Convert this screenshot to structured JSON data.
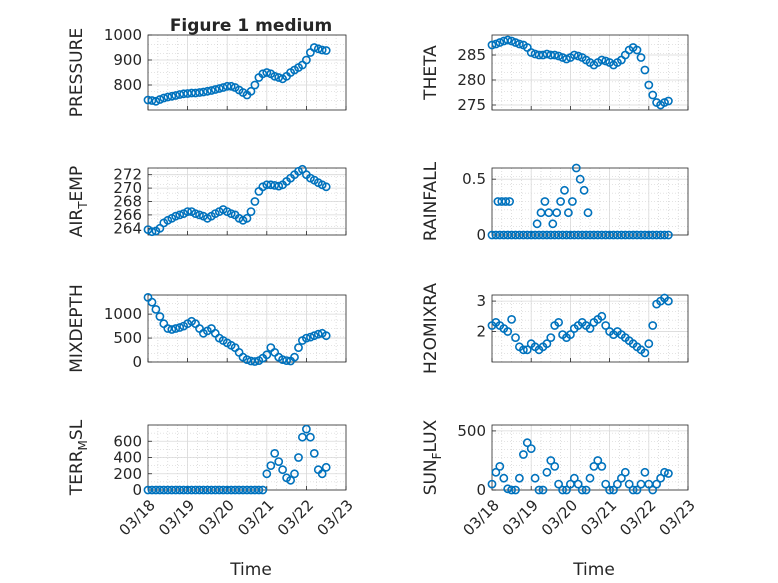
{
  "figure": {
    "title": "Figure 1 medium",
    "xlabel": "Time"
  },
  "xticks": [
    "03/18",
    "03/19",
    "03/20",
    "03/21",
    "03/22",
    "03/23"
  ],
  "marker_color": "#0072BD",
  "chart_data": [
    {
      "id": "pressure",
      "type": "scatter",
      "ylabel": "PRESSURE",
      "ylim": [
        700,
        1000
      ],
      "yticks": [
        800,
        900,
        1000
      ],
      "grid": true,
      "x": [
        0.0,
        0.1,
        0.2,
        0.3,
        0.4,
        0.5,
        0.6,
        0.7,
        0.8,
        0.9,
        1.0,
        1.1,
        1.2,
        1.3,
        1.4,
        1.5,
        1.6,
        1.7,
        1.8,
        1.9,
        2.0,
        2.1,
        2.2,
        2.3,
        2.4,
        2.5,
        2.6,
        2.7,
        2.8,
        2.9,
        3.0,
        3.1,
        3.2,
        3.3,
        3.4,
        3.5,
        3.6,
        3.7,
        3.8,
        3.9,
        4.0,
        4.1,
        4.2,
        4.3,
        4.4,
        4.5
      ],
      "y": [
        740,
        738,
        735,
        742,
        748,
        752,
        755,
        758,
        762,
        765,
        766,
        768,
        768,
        770,
        772,
        775,
        778,
        782,
        786,
        790,
        795,
        795,
        790,
        780,
        770,
        760,
        775,
        800,
        830,
        845,
        850,
        845,
        835,
        830,
        825,
        835,
        850,
        860,
        870,
        880,
        900,
        930,
        950,
        945,
        940,
        938
      ]
    },
    {
      "id": "theta",
      "type": "scatter",
      "ylabel": "THETA",
      "ylim": [
        274,
        289
      ],
      "yticks": [
        275,
        280,
        285
      ],
      "grid": true,
      "x": [
        0.0,
        0.1,
        0.2,
        0.3,
        0.4,
        0.5,
        0.6,
        0.7,
        0.8,
        0.9,
        1.0,
        1.1,
        1.2,
        1.3,
        1.4,
        1.5,
        1.6,
        1.7,
        1.8,
        1.9,
        2.0,
        2.1,
        2.2,
        2.3,
        2.4,
        2.5,
        2.6,
        2.7,
        2.8,
        2.9,
        3.0,
        3.1,
        3.2,
        3.3,
        3.4,
        3.5,
        3.6,
        3.7,
        3.8,
        3.9,
        4.0,
        4.1,
        4.2,
        4.3,
        4.4,
        4.5
      ],
      "y": [
        287.0,
        287.2,
        287.5,
        287.8,
        288.0,
        287.8,
        287.5,
        287.2,
        287.0,
        286.5,
        285.5,
        285.2,
        285.0,
        285.0,
        285.2,
        285.0,
        285.0,
        284.8,
        284.5,
        284.2,
        284.5,
        285.0,
        284.8,
        284.5,
        284.0,
        283.5,
        283.0,
        283.5,
        284.0,
        283.8,
        283.5,
        283.0,
        283.5,
        284.0,
        285.0,
        286.0,
        286.5,
        286.0,
        284.5,
        282.0,
        279.0,
        277.0,
        275.5,
        275.0,
        275.5,
        275.8
      ]
    },
    {
      "id": "air_temp",
      "type": "scatter",
      "ylabel": "AIR_TEMP",
      "ylim": [
        263,
        273
      ],
      "yticks": [
        264,
        266,
        268,
        270,
        272
      ],
      "grid": true,
      "x": [
        0.0,
        0.1,
        0.2,
        0.3,
        0.4,
        0.5,
        0.6,
        0.7,
        0.8,
        0.9,
        1.0,
        1.1,
        1.2,
        1.3,
        1.4,
        1.5,
        1.6,
        1.7,
        1.8,
        1.9,
        2.0,
        2.1,
        2.2,
        2.3,
        2.4,
        2.5,
        2.6,
        2.7,
        2.8,
        2.9,
        3.0,
        3.1,
        3.2,
        3.3,
        3.4,
        3.5,
        3.6,
        3.7,
        3.8,
        3.9,
        4.0,
        4.1,
        4.2,
        4.3,
        4.4,
        4.5
      ],
      "y": [
        263.8,
        263.5,
        263.6,
        264.0,
        264.8,
        265.2,
        265.5,
        265.8,
        266.0,
        266.2,
        266.5,
        266.5,
        266.2,
        266.0,
        265.8,
        265.5,
        265.8,
        266.2,
        266.5,
        266.8,
        266.5,
        266.2,
        266.0,
        265.5,
        265.2,
        265.5,
        266.5,
        268.0,
        269.5,
        270.2,
        270.5,
        270.5,
        270.4,
        270.3,
        270.5,
        271.0,
        271.5,
        272.0,
        272.5,
        272.8,
        272.0,
        271.5,
        271.2,
        270.8,
        270.5,
        270.2
      ]
    },
    {
      "id": "rainfall",
      "type": "scatter",
      "ylabel": "RAINFALL",
      "ylim": [
        0,
        0.6
      ],
      "yticks": [
        0,
        0.5
      ],
      "grid": true,
      "x": [
        0.0,
        0.1,
        0.2,
        0.3,
        0.4,
        0.5,
        0.6,
        0.7,
        0.8,
        0.9,
        1.0,
        1.1,
        1.2,
        1.3,
        1.4,
        1.5,
        1.6,
        1.7,
        1.8,
        1.9,
        2.0,
        2.1,
        2.2,
        2.3,
        2.4,
        2.5,
        2.6,
        2.7,
        2.8,
        2.9,
        3.0,
        3.1,
        3.2,
        3.3,
        3.4,
        3.5,
        3.6,
        3.7,
        3.8,
        3.9,
        4.0,
        4.1,
        4.2,
        4.3,
        4.4,
        4.5,
        0.15,
        0.25,
        0.35,
        0.45,
        1.15,
        1.25,
        1.35,
        1.45,
        1.55,
        1.65,
        1.75,
        1.85,
        1.95,
        2.05,
        2.15,
        2.25,
        2.35,
        2.45
      ],
      "y": [
        0,
        0,
        0,
        0,
        0,
        0,
        0,
        0,
        0,
        0,
        0,
        0,
        0,
        0,
        0,
        0,
        0,
        0,
        0,
        0,
        0,
        0,
        0,
        0,
        0,
        0,
        0,
        0,
        0,
        0,
        0,
        0,
        0,
        0,
        0,
        0,
        0,
        0,
        0,
        0,
        0,
        0,
        0,
        0,
        0,
        0,
        0.3,
        0.3,
        0.3,
        0.3,
        0.1,
        0.2,
        0.3,
        0.2,
        0.1,
        0.2,
        0.3,
        0.4,
        0.2,
        0.3,
        0.6,
        0.5,
        0.4,
        0.2
      ]
    },
    {
      "id": "mixdepth",
      "type": "scatter",
      "ylabel": "MIXDEPTH",
      "ylim": [
        0,
        1400
      ],
      "yticks": [
        0,
        500,
        1000
      ],
      "grid": true,
      "x": [
        0.0,
        0.1,
        0.2,
        0.3,
        0.4,
        0.5,
        0.6,
        0.7,
        0.8,
        0.9,
        1.0,
        1.1,
        1.2,
        1.3,
        1.4,
        1.5,
        1.6,
        1.7,
        1.8,
        1.9,
        2.0,
        2.1,
        2.2,
        2.3,
        2.4,
        2.5,
        2.6,
        2.7,
        2.8,
        2.9,
        3.0,
        3.1,
        3.2,
        3.3,
        3.4,
        3.5,
        3.6,
        3.7,
        3.8,
        3.9,
        4.0,
        4.1,
        4.2,
        4.3,
        4.4,
        4.5
      ],
      "y": [
        1350,
        1250,
        1100,
        950,
        800,
        700,
        680,
        700,
        720,
        750,
        800,
        850,
        800,
        700,
        600,
        650,
        700,
        600,
        500,
        450,
        400,
        350,
        300,
        200,
        100,
        50,
        20,
        10,
        30,
        80,
        150,
        300,
        200,
        100,
        50,
        30,
        20,
        100,
        300,
        450,
        500,
        520,
        550,
        580,
        600,
        550
      ]
    },
    {
      "id": "h2omixra",
      "type": "scatter",
      "ylabel": "H2OMIXRA",
      "ylim": [
        1,
        3.2
      ],
      "yticks": [
        2,
        3
      ],
      "grid": true,
      "x": [
        0.0,
        0.1,
        0.2,
        0.3,
        0.4,
        0.5,
        0.6,
        0.7,
        0.8,
        0.9,
        1.0,
        1.1,
        1.2,
        1.3,
        1.4,
        1.5,
        1.6,
        1.7,
        1.8,
        1.9,
        2.0,
        2.1,
        2.2,
        2.3,
        2.4,
        2.5,
        2.6,
        2.7,
        2.8,
        2.9,
        3.0,
        3.1,
        3.2,
        3.3,
        3.4,
        3.5,
        3.6,
        3.7,
        3.8,
        3.9,
        4.0,
        4.1,
        4.2,
        4.3,
        4.4,
        4.5
      ],
      "y": [
        2.2,
        2.3,
        2.2,
        2.1,
        2.0,
        2.4,
        1.8,
        1.5,
        1.4,
        1.4,
        1.6,
        1.5,
        1.4,
        1.5,
        1.6,
        1.8,
        2.2,
        2.3,
        1.9,
        1.8,
        1.9,
        2.1,
        2.2,
        2.3,
        2.2,
        2.1,
        2.3,
        2.4,
        2.5,
        2.2,
        2.0,
        1.9,
        2.0,
        1.9,
        1.8,
        1.7,
        1.6,
        1.5,
        1.4,
        1.3,
        1.6,
        2.2,
        2.9,
        3.0,
        3.1,
        3.0
      ]
    },
    {
      "id": "terr_msl",
      "type": "scatter",
      "ylabel": "TERR_MSL",
      "ylim": [
        0,
        800
      ],
      "yticks": [
        0,
        200,
        400,
        600
      ],
      "grid": true,
      "x": [
        0.0,
        0.1,
        0.2,
        0.3,
        0.4,
        0.5,
        0.6,
        0.7,
        0.8,
        0.9,
        1.0,
        1.1,
        1.2,
        1.3,
        1.4,
        1.5,
        1.6,
        1.7,
        1.8,
        1.9,
        2.0,
        2.1,
        2.2,
        2.3,
        2.4,
        2.5,
        2.6,
        2.7,
        2.8,
        2.9,
        3.0,
        3.1,
        3.2,
        3.3,
        3.4,
        3.5,
        3.6,
        3.7,
        3.8,
        3.9,
        4.0,
        4.1,
        4.2,
        4.3,
        4.4,
        4.5
      ],
      "y": [
        0,
        0,
        0,
        0,
        0,
        0,
        0,
        0,
        0,
        0,
        0,
        0,
        0,
        0,
        0,
        0,
        0,
        0,
        0,
        0,
        0,
        0,
        0,
        0,
        0,
        0,
        0,
        0,
        0,
        0,
        200,
        300,
        450,
        350,
        250,
        150,
        120,
        200,
        400,
        650,
        750,
        650,
        450,
        250,
        200,
        280
      ]
    },
    {
      "id": "sun_flux",
      "type": "scatter",
      "ylabel": "SUN_FLUX",
      "ylim": [
        0,
        550
      ],
      "yticks": [
        0,
        500
      ],
      "grid": true,
      "x": [
        0.0,
        0.1,
        0.2,
        0.3,
        0.4,
        0.5,
        0.6,
        0.7,
        0.8,
        0.9,
        1.0,
        1.1,
        1.2,
        1.3,
        1.4,
        1.5,
        1.6,
        1.7,
        1.8,
        1.9,
        2.0,
        2.1,
        2.2,
        2.3,
        2.4,
        2.5,
        2.6,
        2.7,
        2.8,
        2.9,
        3.0,
        3.1,
        3.2,
        3.3,
        3.4,
        3.5,
        3.6,
        3.7,
        3.8,
        3.9,
        4.0,
        4.1,
        4.2,
        4.3,
        4.4,
        4.5
      ],
      "y": [
        50,
        150,
        200,
        100,
        10,
        0,
        0,
        100,
        300,
        400,
        350,
        100,
        0,
        0,
        150,
        250,
        200,
        50,
        0,
        0,
        50,
        100,
        50,
        0,
        0,
        100,
        200,
        250,
        200,
        50,
        0,
        0,
        50,
        100,
        150,
        50,
        0,
        0,
        50,
        150,
        50,
        0,
        50,
        100,
        150,
        140
      ]
    }
  ]
}
